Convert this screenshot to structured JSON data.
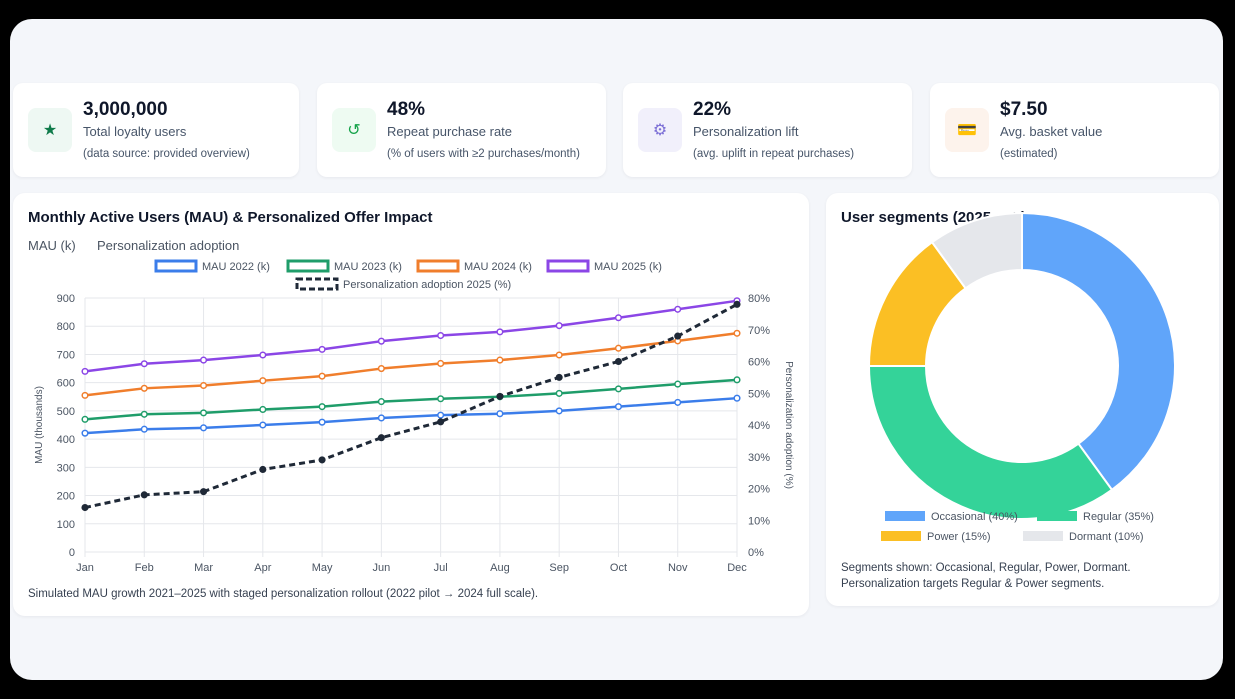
{
  "kpis": [
    {
      "value": "3,000,000",
      "label": "Total loyalty users",
      "note": "(data source: provided overview)",
      "icon": "star-icon",
      "glyph": "★",
      "icon_color": "#0f7b4a",
      "icon_bg": "#eef8f3"
    },
    {
      "value": "48%",
      "label": "Repeat purchase rate",
      "note": "(% of users with ≥2 purchases/month)",
      "icon": "refresh-icon",
      "glyph": "↺",
      "icon_color": "#16a34a",
      "icon_bg": "#eefbf2"
    },
    {
      "value": "22%",
      "label": "Personalization lift",
      "note": "(avg. uplift in repeat purchases)",
      "icon": "gear-icon",
      "glyph": "⚙",
      "icon_color": "#7c6fd6",
      "icon_bg": "#f1f0fb"
    },
    {
      "value": "$7.50",
      "label": "Avg. basket value",
      "note": "(estimated)",
      "icon": "card-icon",
      "glyph": "💳",
      "icon_color": "#2563eb",
      "icon_bg": "#fdf3ec"
    }
  ],
  "main_chart": {
    "title": "Monthly Active Users (MAU) & Personalized Offer Impact",
    "subtitles": [
      "MAU (k)",
      "Personalization adoption"
    ],
    "footnote": "Simulated MAU growth 2021–2025 with staged personalization rollout (2022 pilot → 2024 full scale)."
  },
  "chart_data": [
    {
      "type": "line",
      "categories": [
        "Jan",
        "Feb",
        "Mar",
        "Apr",
        "May",
        "Jun",
        "Jul",
        "Aug",
        "Sep",
        "Oct",
        "Nov",
        "Dec"
      ],
      "series": [
        {
          "name": "MAU 2022 (k)",
          "axis": "left",
          "color": "#3b7dea",
          "dashed": false,
          "values": [
            421,
            435,
            440,
            450,
            460,
            475,
            485,
            490,
            500,
            515,
            530,
            545
          ]
        },
        {
          "name": "MAU 2023 (k)",
          "axis": "left",
          "color": "#1f9d6a",
          "dashed": false,
          "values": [
            470,
            488,
            493,
            505,
            515,
            533,
            543,
            550,
            562,
            578,
            595,
            610
          ]
        },
        {
          "name": "MAU 2024 (k)",
          "axis": "left",
          "color": "#f07e2c",
          "dashed": false,
          "values": [
            555,
            580,
            590,
            607,
            623,
            650,
            668,
            680,
            698,
            722,
            748,
            775
          ]
        },
        {
          "name": "MAU 2025 (k)",
          "axis": "left",
          "color": "#8b46e6",
          "dashed": false,
          "values": [
            640,
            667,
            680,
            698,
            718,
            747,
            767,
            780,
            802,
            830,
            860,
            890
          ]
        },
        {
          "name": "Personalization adoption 2025 (%)",
          "axis": "right",
          "color": "#1f2937",
          "dashed": true,
          "values": [
            14,
            18,
            19,
            26,
            29,
            36,
            41,
            49,
            55,
            60,
            68,
            78
          ]
        }
      ],
      "yleft": {
        "label": "MAU (thousands)",
        "min": 0,
        "max": 900,
        "ticks": [
          "0",
          "100",
          "200",
          "300",
          "400",
          "500",
          "600",
          "700",
          "800",
          "900"
        ]
      },
      "yright": {
        "label": "Personalization adoption (%)",
        "min": 0,
        "max": 80,
        "ticks": [
          "0%",
          "10%",
          "20%",
          "30%",
          "40%",
          "50%",
          "60%",
          "70%",
          "80%"
        ]
      },
      "grid": true,
      "legend": "top"
    },
    {
      "type": "pie",
      "title": "User segments (2025 est.)",
      "slices": [
        {
          "name": "Occasional (40%)",
          "value": 40,
          "color": "#60a5fa"
        },
        {
          "name": "Regular (35%)",
          "value": 35,
          "color": "#34d399"
        },
        {
          "name": "Power (15%)",
          "value": 15,
          "color": "#fbbf24"
        },
        {
          "name": "Dormant (10%)",
          "value": 10,
          "color": "#e5e7eb"
        }
      ],
      "legend": "bottom"
    }
  ],
  "segments_note": [
    "Segments shown: Occasional, Regular, Power, Dormant.",
    "Personalization targets Regular & Power segments."
  ]
}
